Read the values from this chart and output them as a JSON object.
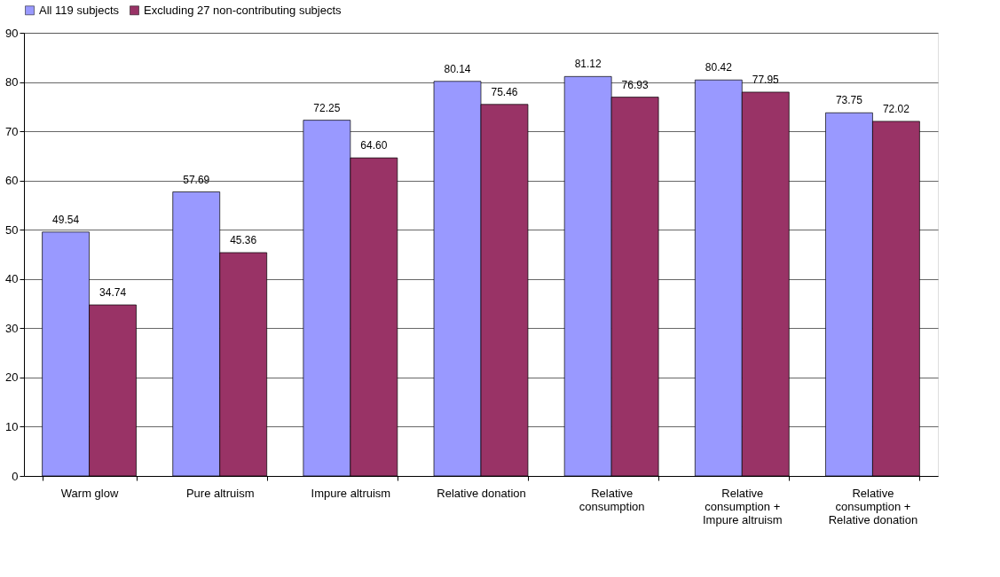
{
  "chart_data": {
    "type": "bar",
    "categories": [
      "Warm glow",
      "Pure altruism",
      "Impure altruism",
      "Relative donation",
      "Relative consumption",
      "Relative consumption + Impure altruism",
      "Relative consumption + Relative donation"
    ],
    "series": [
      {
        "name": "All 119 subjects",
        "color": "#9999ff",
        "values": [
          49.54,
          57.69,
          72.25,
          80.14,
          81.12,
          80.42,
          73.75
        ],
        "value_labels": [
          "49.54",
          "57.69",
          "72.25",
          "80.14",
          "81.12",
          "80.42",
          "73.75"
        ]
      },
      {
        "name": "Excluding 27 non-contributing subjects",
        "color": "#993366",
        "values": [
          34.74,
          45.36,
          64.6,
          75.46,
          76.93,
          77.95,
          72.02
        ],
        "value_labels": [
          "34.74",
          "45.36",
          "64.60",
          "75.46",
          "76.93",
          "77.95",
          "72.02"
        ]
      }
    ],
    "ylim": [
      0,
      90
    ],
    "yticks": [
      0,
      10,
      20,
      30,
      40,
      50,
      60,
      70,
      80,
      90
    ],
    "grid": "y",
    "legend": "top"
  }
}
